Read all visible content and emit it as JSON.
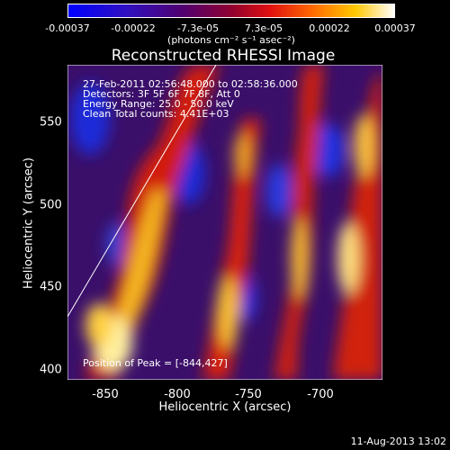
{
  "colorbar": {
    "ticks": [
      "-0.00037",
      "-0.00022",
      "-7.3e-05",
      "7.3e-05",
      "0.00022",
      "0.00037"
    ],
    "units": "(photons cm⁻² s⁻¹ asec⁻²)"
  },
  "title": "Reconstructed RHESSI Image",
  "info": {
    "line1": "27-Feb-2011 02:56:48.000 to 02:58:36.000",
    "line2": "Detectors: 3F 5F 6F 7F 8F, Att 0",
    "line3": "Energy Range: 25.0 - 50.0 keV",
    "line4": "Clean    Total counts: 4.41E+03",
    "peak": "Position of Peak = [-844,427]"
  },
  "axes": {
    "xlabel": "Heliocentric X (arcsec)",
    "ylabel": "Heliocentric Y (arcsec)",
    "xticks": [
      "-850",
      "-800",
      "-750",
      "-700"
    ],
    "yticks": [
      "550",
      "500",
      "450",
      "400"
    ]
  },
  "footer": "11-Aug-2013 13:02"
}
